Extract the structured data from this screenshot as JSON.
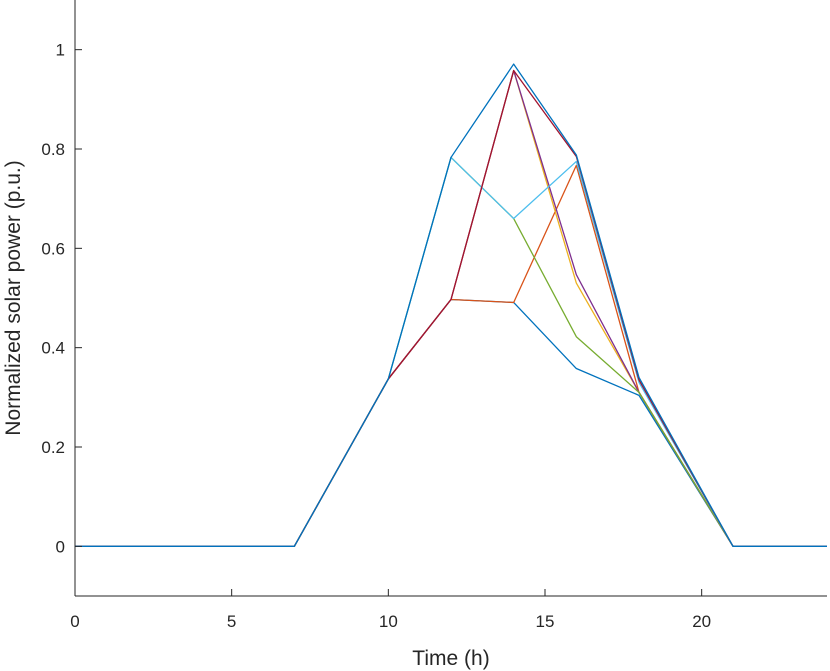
{
  "chart_data": {
    "type": "line",
    "title": "",
    "xlabel": "Time (h)",
    "ylabel": "Normalized solar power (p.u.)",
    "xlim": [
      0,
      24
    ],
    "ylim": [
      -0.1,
      1.1
    ],
    "xticks": [
      0,
      5,
      10,
      15,
      20
    ],
    "yticks": [
      0,
      0.2,
      0.4,
      0.6,
      0.8,
      1
    ],
    "xtick_labels": [
      "0",
      "5",
      "10",
      "15",
      "20"
    ],
    "ytick_labels": [
      "0",
      "0.2",
      "0.4",
      "0.6",
      "0.8",
      "1"
    ],
    "grid": false,
    "legend": "none",
    "x": [
      0,
      7,
      10,
      12,
      14,
      16,
      18,
      21,
      24
    ],
    "series": [
      {
        "color": "#0072BD",
        "values": [
          0,
          0,
          0.337,
          0.497,
          0.491,
          0.358,
          0.304,
          0,
          0
        ]
      },
      {
        "color": "#D95319",
        "values": [
          0,
          0,
          0.337,
          0.497,
          0.491,
          0.767,
          0.31,
          0,
          0
        ]
      },
      {
        "color": "#EDB120",
        "values": [
          0,
          0,
          0.337,
          0.497,
          0.958,
          0.53,
          0.31,
          0,
          0
        ]
      },
      {
        "color": "#7E2F8E",
        "values": [
          0,
          0,
          0.337,
          0.497,
          0.958,
          0.547,
          0.31,
          0,
          0
        ]
      },
      {
        "color": "#77AC30",
        "values": [
          0,
          0,
          0.337,
          0.783,
          0.66,
          0.422,
          0.31,
          0,
          0
        ]
      },
      {
        "color": "#4DBEEE",
        "values": [
          0,
          0,
          0.337,
          0.783,
          0.66,
          0.775,
          0.33,
          0,
          0
        ]
      },
      {
        "color": "#A2142F",
        "values": [
          0,
          0,
          0.337,
          0.497,
          0.958,
          0.785,
          0.335,
          0,
          0
        ]
      },
      {
        "color": "#0072BD",
        "values": [
          0,
          0,
          0.337,
          0.783,
          0.971,
          0.788,
          0.34,
          0,
          0
        ]
      }
    ]
  }
}
